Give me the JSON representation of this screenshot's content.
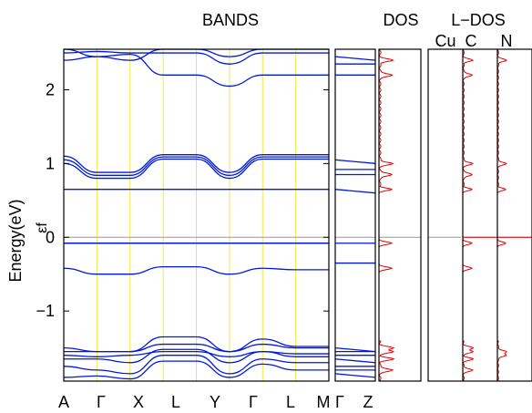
{
  "chart_data": {
    "type": "line",
    "panels": {
      "bands": {
        "title": "BANDS",
        "ylabel": "Energy(eV)",
        "ylim": [
          -1.95,
          2.55
        ],
        "yticks": [
          -1,
          0,
          1,
          2
        ],
        "ytick_labels": [
          "-1",
          "0",
          "1",
          "2"
        ],
        "fermi_label": "εf",
        "fermi_level": 0,
        "kpoints": [
          "A",
          "Γ",
          "X",
          "L",
          "Y",
          "Γ",
          "L",
          "M"
        ],
        "kpoint_positions": [
          0,
          1,
          2,
          3,
          4,
          5,
          6,
          7
        ],
        "guide_color": "#f5e642",
        "band_color": "#0018e0",
        "flat_levels": [
          0.65,
          -0.08
        ],
        "bands_group_mid": [
          {
            "name": "b1",
            "values": [
              1.05,
              0.84,
              0.84,
              1.09,
              1.09,
              0.84,
              1.09,
              1.09
            ]
          },
          {
            "name": "b2",
            "values": [
              1.0,
              0.8,
              0.8,
              1.06,
              1.06,
              0.8,
              1.06,
              1.06
            ]
          },
          {
            "name": "b3",
            "values": [
              1.1,
              0.88,
              0.88,
              1.12,
              1.12,
              0.88,
              1.12,
              1.12
            ]
          },
          {
            "name": "b4",
            "values": [
              -0.42,
              -0.5,
              -0.5,
              -0.4,
              -0.4,
              -0.5,
              -0.42,
              -0.44
            ]
          }
        ],
        "bands_group_high": [
          {
            "name": "h1",
            "values": [
              2.4,
              2.45,
              2.48,
              2.2,
              2.2,
              2.05,
              2.2,
              2.2
            ]
          },
          {
            "name": "h2",
            "values": [
              2.5,
              2.52,
              2.5,
              2.5,
              2.5,
              2.35,
              2.5,
              2.5
            ]
          },
          {
            "name": "h3",
            "values": [
              2.55,
              2.45,
              2.4,
              2.55,
              2.55,
              2.45,
              2.55,
              2.55
            ]
          }
        ],
        "bands_group_low": [
          {
            "name": "l1",
            "values": [
              -1.55,
              -1.55,
              -1.55,
              -1.45,
              -1.45,
              -1.55,
              -1.45,
              -1.5
            ]
          },
          {
            "name": "l2",
            "values": [
              -1.5,
              -1.55,
              -1.55,
              -1.35,
              -1.35,
              -1.55,
              -1.38,
              -1.48
            ]
          },
          {
            "name": "l3",
            "values": [
              -1.6,
              -1.62,
              -1.6,
              -1.55,
              -1.55,
              -1.62,
              -1.55,
              -1.58
            ]
          },
          {
            "name": "l4",
            "values": [
              -1.65,
              -1.65,
              -1.7,
              -1.52,
              -1.52,
              -1.7,
              -1.55,
              -1.62
            ]
          },
          {
            "name": "l5",
            "values": [
              -1.75,
              -1.8,
              -1.85,
              -1.6,
              -1.6,
              -1.85,
              -1.65,
              -1.7
            ]
          },
          {
            "name": "l6",
            "values": [
              -1.9,
              -1.88,
              -1.92,
              -1.68,
              -1.68,
              -1.9,
              -1.72,
              -1.8
            ]
          }
        ]
      },
      "gz": {
        "kpoints": [
          "Γ",
          "Z"
        ],
        "levels": [
          2.45,
          2.35,
          2.2,
          1.05,
          0.92,
          0.85,
          0.65,
          -0.08,
          -0.35,
          -1.5,
          -1.55,
          -1.6,
          -1.65,
          -1.75,
          -1.8,
          -1.85
        ]
      },
      "dos": {
        "title": "DOS",
        "color": "#e00000",
        "peaks": [
          2.4,
          2.2,
          1.0,
          0.85,
          0.65,
          -0.08,
          -0.42,
          -1.5,
          -1.55,
          -1.65,
          -1.8
        ]
      },
      "ldos": {
        "title": "L−DOS",
        "columns": [
          "Cu",
          "C",
          "N"
        ],
        "color": "#e00000"
      }
    }
  }
}
